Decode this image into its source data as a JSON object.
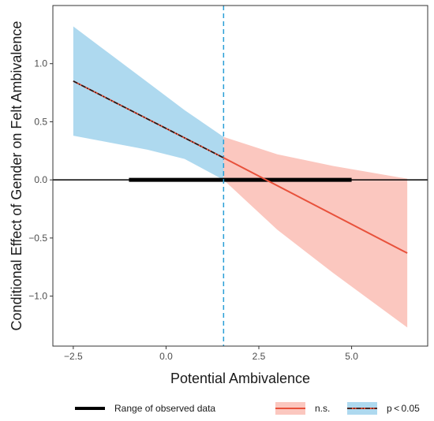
{
  "chart_data": {
    "type": "line",
    "xlabel": "Potential Ambivalence",
    "ylabel": "Conditional Effect of Gender on Felt Ambivalence",
    "xlim": [
      -3.05,
      7.05
    ],
    "ylim": [
      -1.43,
      1.5
    ],
    "x_ticks": [
      {
        "value": -2.5,
        "label": "−2.5"
      },
      {
        "value": 0,
        "label": "0.0"
      },
      {
        "value": 2.5,
        "label": "2.5"
      },
      {
        "value": 5,
        "label": "5.0"
      }
    ],
    "y_ticks": [
      {
        "value": 1,
        "label": "1.0"
      },
      {
        "value": 0.5,
        "label": "0.5"
      },
      {
        "value": 0,
        "label": "0.0"
      },
      {
        "value": -0.5,
        "label": "−0.5"
      },
      {
        "value": -1,
        "label": "−1.0"
      }
    ],
    "grid": false,
    "reference_line_y": 0,
    "threshold_x": 1.55,
    "observed_range": [
      -1,
      5
    ],
    "series": [
      {
        "name": "p < 0.05",
        "x": [
          -2.5,
          1.55
        ],
        "y": [
          0.85,
          0.19
        ],
        "band_x": [
          -2.5,
          -1.5,
          -0.5,
          0.5,
          1.55
        ],
        "band_lower": [
          0.38,
          0.32,
          0.26,
          0.18,
          0.0
        ],
        "band_upper": [
          1.32,
          1.08,
          0.84,
          0.6,
          0.37
        ],
        "line_color": "#e8513b",
        "overlay_color": "#1a1a1a",
        "fill_color": "#aed9ef"
      },
      {
        "name": "n.s.",
        "x": [
          1.55,
          6.5
        ],
        "y": [
          0.19,
          -0.63
        ],
        "band_x": [
          1.55,
          3,
          4.5,
          6.5
        ],
        "band_lower": [
          0.0,
          -0.43,
          -0.8,
          -1.27
        ],
        "band_upper": [
          0.37,
          0.22,
          0.12,
          0.01
        ],
        "line_color": "#e8513b",
        "fill_color": "#fbc7bf"
      }
    ],
    "colors": {
      "threshold_line": "#2a9fd6",
      "zero_line": "#000000",
      "observed_bar": "#000000",
      "axis": "#333333"
    },
    "legend": {
      "position": "bottom",
      "items": [
        {
          "label": "Range of observed data",
          "style": "thick-line",
          "color": "#000000"
        },
        {
          "label": "n.s.",
          "style": "band-line",
          "fill": "#fbc7bf",
          "line": "#e8513b"
        },
        {
          "label": "p < 0.05",
          "style": "band-line-dashed",
          "fill": "#aed9ef",
          "line": "#e8513b"
        }
      ]
    }
  }
}
